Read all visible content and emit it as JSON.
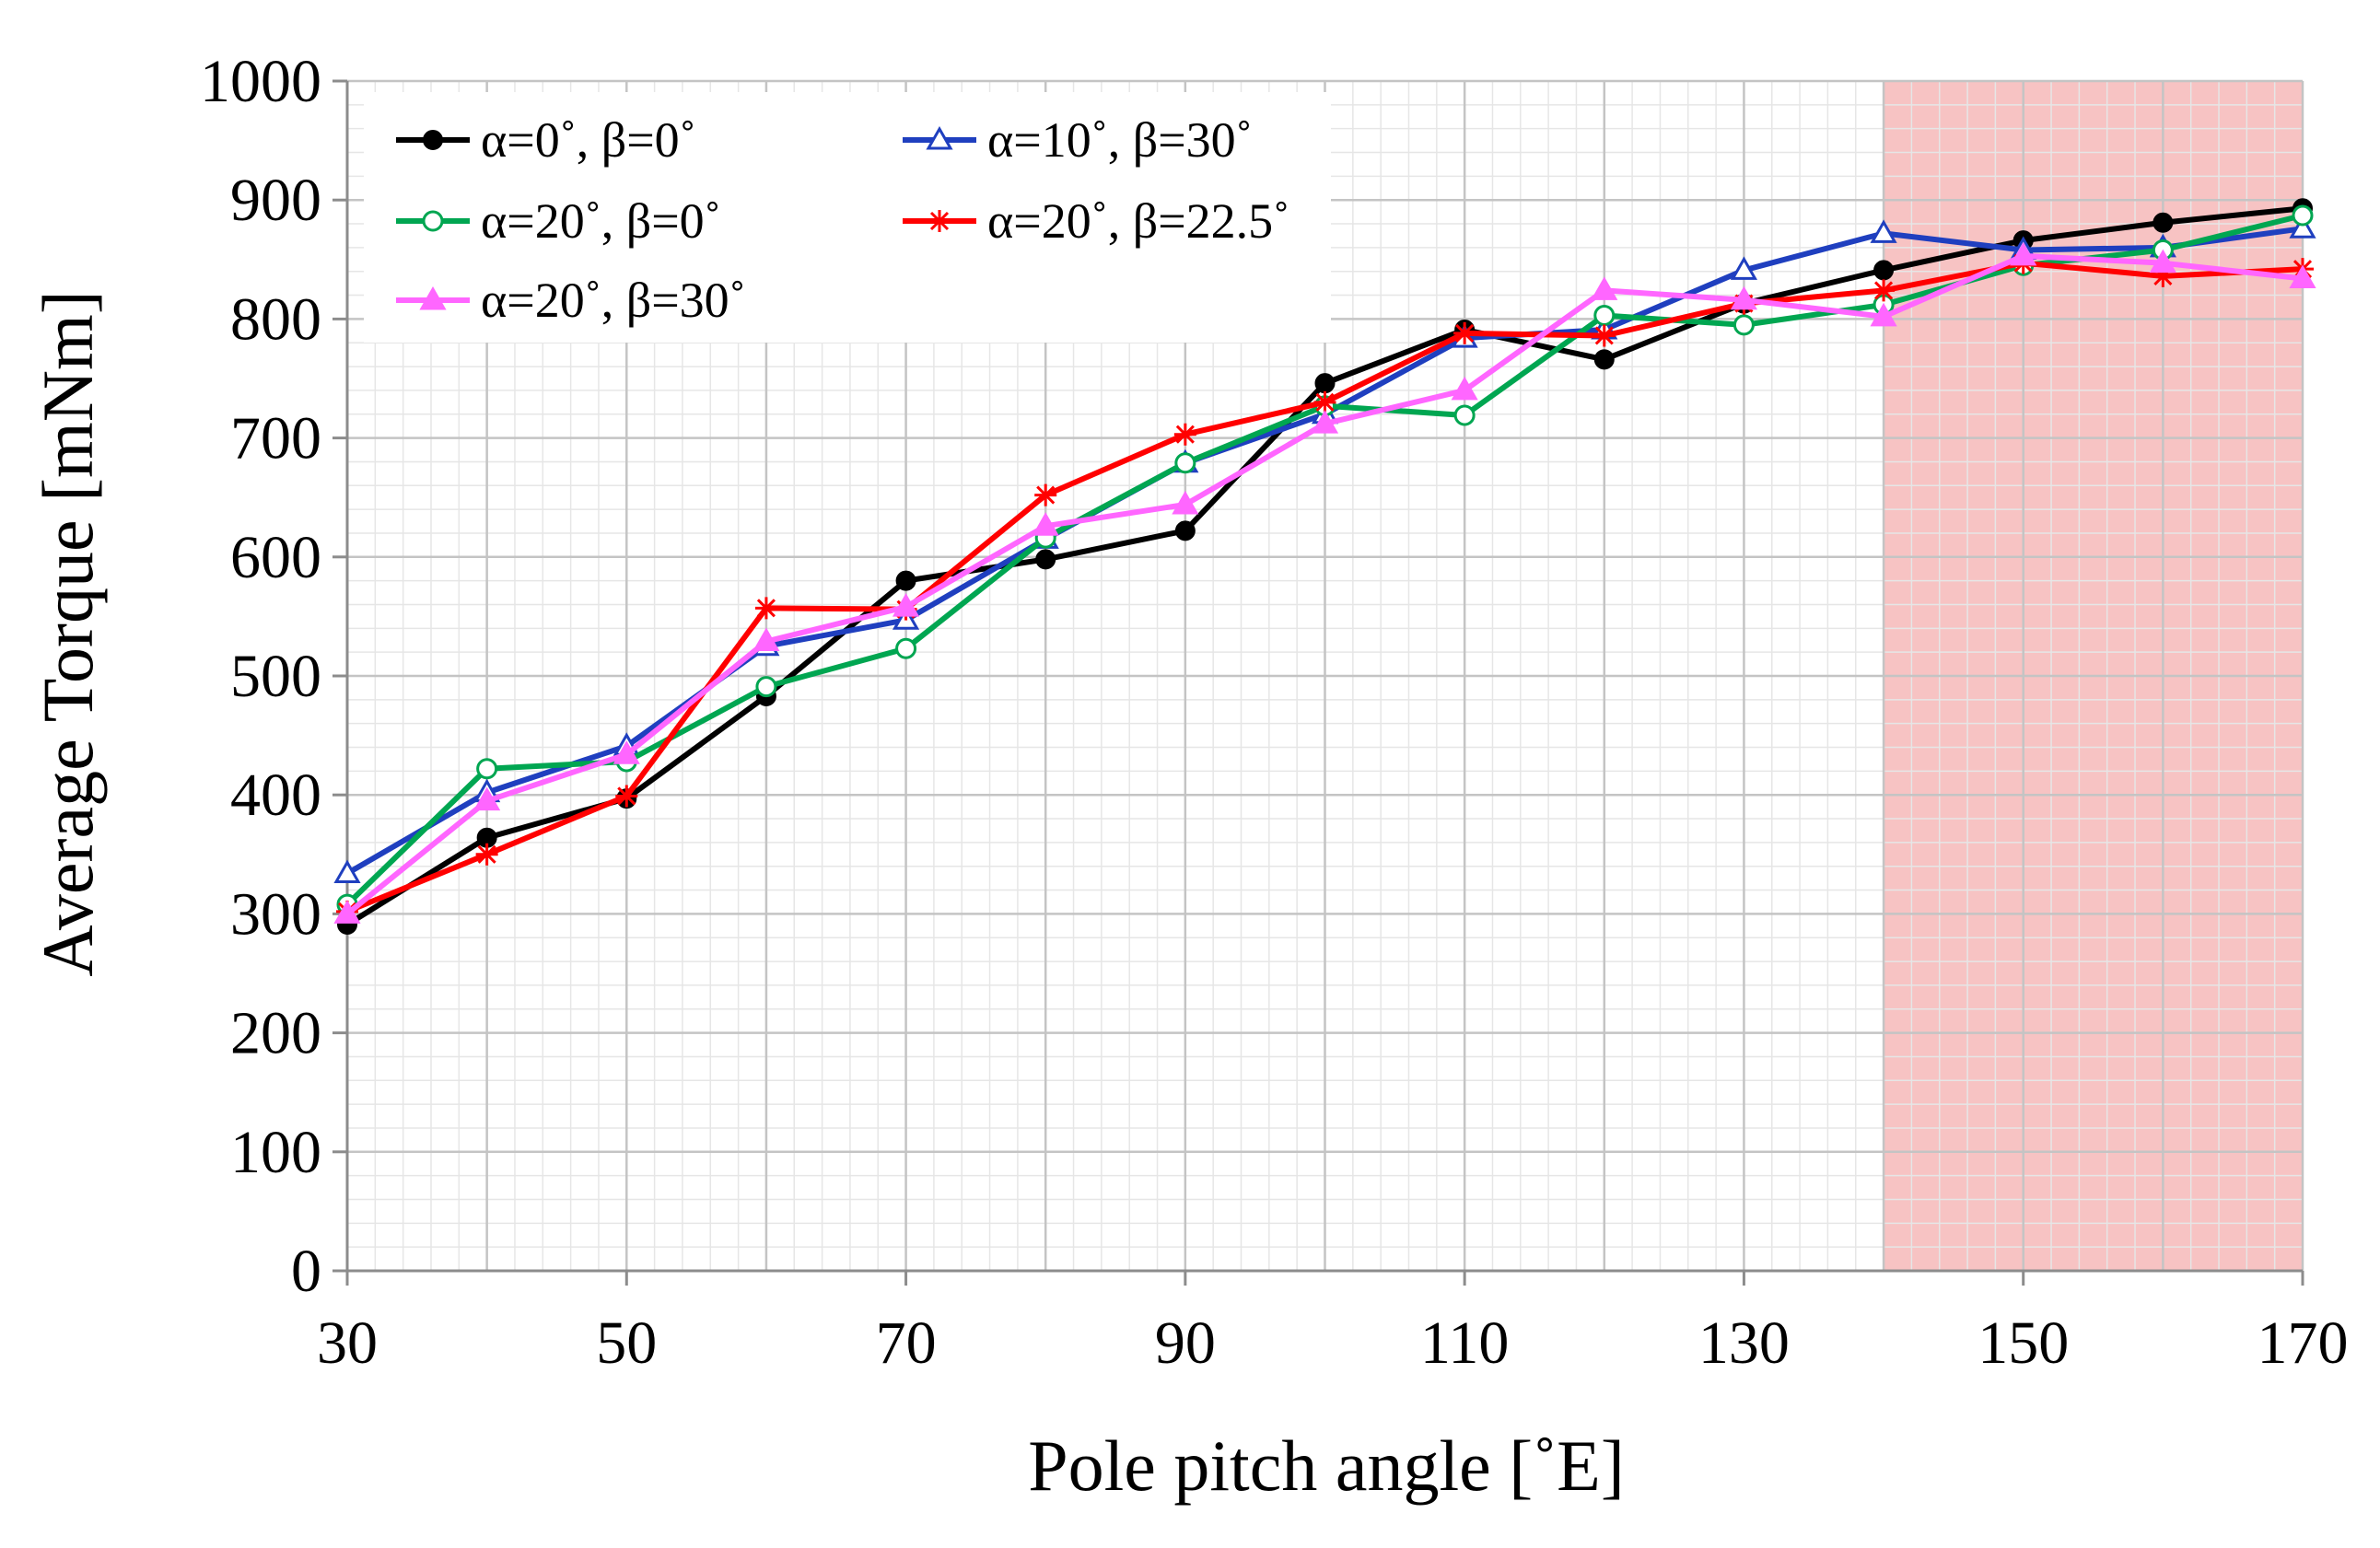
{
  "chart_data": {
    "type": "line",
    "title": "",
    "xlabel": "Pole pitch angle [˚E]",
    "ylabel": "Average Torque [mNm]",
    "xlim": [
      30,
      170
    ],
    "ylim": [
      0,
      1000
    ],
    "x_ticks": [
      "30",
      "50",
      "70",
      "90",
      "110",
      "130",
      "150",
      "170"
    ],
    "y_ticks": [
      "0",
      "100",
      "200",
      "300",
      "400",
      "500",
      "600",
      "700",
      "800",
      "900",
      "1000"
    ],
    "x": [
      30,
      40,
      50,
      60,
      70,
      80,
      90,
      100,
      110,
      120,
      130,
      140,
      150,
      160,
      170
    ],
    "highlight_region": {
      "x_start": 140,
      "x_end": 170,
      "color": "#f7c3c3"
    },
    "grid": true,
    "legend_position": "top-left",
    "series": [
      {
        "name": "α=0˚, β=0˚",
        "color": "#000000",
        "marker": "filled-circle",
        "values": [
          291,
          364,
          397,
          483,
          580,
          598,
          622,
          746,
          791,
          766,
          813,
          841,
          866,
          881,
          893
        ]
      },
      {
        "name": "α=10˚, β=30˚",
        "color": "#1f3fbf",
        "marker": "open-triangle",
        "values": [
          334,
          402,
          441,
          525,
          547,
          615,
          679,
          720,
          784,
          791,
          841,
          872,
          858,
          860,
          876
        ]
      },
      {
        "name": "α=20˚, β=0˚",
        "color": "#00a651",
        "marker": "open-circle",
        "values": [
          308,
          422,
          428,
          491,
          523,
          616,
          679,
          727,
          719,
          803,
          795,
          812,
          845,
          858,
          887
        ]
      },
      {
        "name": "α=20˚, β=22.5˚",
        "color": "#ff0000",
        "marker": "star",
        "values": [
          302,
          350,
          399,
          557,
          556,
          652,
          703,
          730,
          788,
          786,
          813,
          824,
          847,
          836,
          842
        ]
      },
      {
        "name": "α=20˚, β=30˚",
        "color": "#ff66ff",
        "marker": "filled-triangle",
        "values": [
          300,
          395,
          434,
          529,
          558,
          626,
          644,
          712,
          740,
          824,
          816,
          802,
          853,
          847,
          834
        ]
      }
    ]
  }
}
